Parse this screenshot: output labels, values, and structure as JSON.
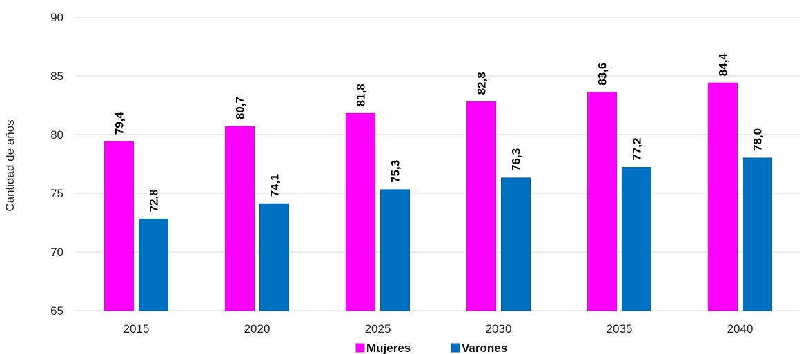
{
  "chart_data": {
    "type": "bar",
    "ylabel": "Cantidad de años",
    "xlabel": "",
    "ylim": [
      65,
      90
    ],
    "yticks": [
      65,
      70,
      75,
      80,
      85,
      90
    ],
    "ytick_labels": [
      "65",
      "70",
      "75",
      "80",
      "85",
      "90"
    ],
    "categories": [
      "2015",
      "2020",
      "2025",
      "2030",
      "2035",
      "2040"
    ],
    "grid": true,
    "legend_position": "bottom",
    "series": [
      {
        "name": "Mujeres",
        "color": "#ff00ff",
        "values": [
          79.4,
          80.7,
          81.8,
          82.8,
          83.6,
          84.4
        ],
        "labels": [
          "79,4",
          "80,7",
          "81,8",
          "82,8",
          "83,6",
          "84,4"
        ]
      },
      {
        "name": "Varones",
        "color": "#0070c0",
        "values": [
          72.8,
          74.1,
          75.3,
          76.3,
          77.2,
          78.0
        ],
        "labels": [
          "72,8",
          "74,1",
          "75,3",
          "76,3",
          "77,2",
          "78,0"
        ]
      }
    ]
  }
}
